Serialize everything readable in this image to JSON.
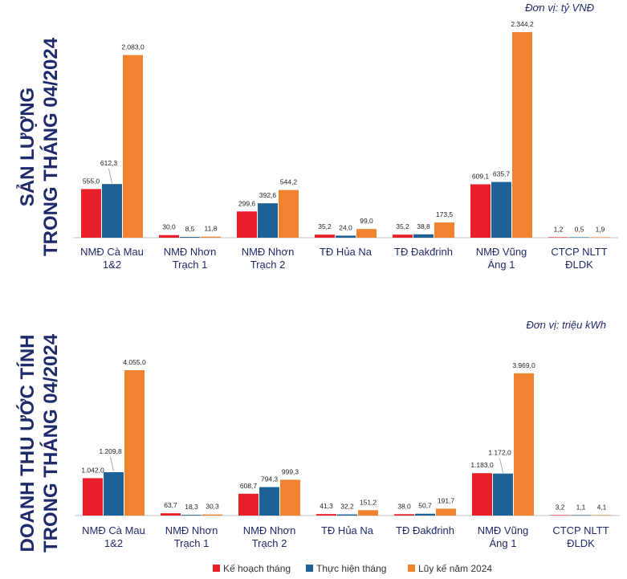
{
  "colors": {
    "ke_hoach": "#e8202a",
    "thuc_hien": "#1f6396",
    "luy_ke": "#f08230",
    "title": "#1f2a6b",
    "axis": "#bfbfbf"
  },
  "legend": {
    "items": [
      "Kế hoạch tháng",
      "Thực hiện tháng",
      "Lũy kế năm 2024"
    ]
  },
  "chart_data": [
    {
      "type": "bar",
      "title_line1": "SẢN LƯỢNG",
      "title_line2": "TRONG THÁNG 04/2024",
      "unit_prefix": "Đơn vị: ",
      "unit_value": "tỷ VNĐ",
      "categories": [
        [
          "NMĐ Cà Mau",
          "1&2"
        ],
        [
          "NMĐ Nhơn",
          "Trạch 1"
        ],
        [
          "NMĐ Nhơn",
          "Trạch 2"
        ],
        [
          "TĐ Hủa Na",
          ""
        ],
        [
          "TĐ Đakđrinh",
          ""
        ],
        [
          "NMĐ Vũng",
          "Áng 1"
        ],
        [
          "CTCP NLTT",
          "ĐLDK"
        ]
      ],
      "series": [
        {
          "name": "Kế hoạch tháng",
          "values": [
            555.0,
            30.0,
            299.6,
            35.2,
            35.2,
            609.1,
            1.2
          ]
        },
        {
          "name": "Thực hiện tháng",
          "values": [
            612.3,
            8.5,
            392.6,
            24.0,
            38.8,
            635.7,
            0.5
          ]
        },
        {
          "name": "Lũy kế năm 2024",
          "values": [
            2083.0,
            11.8,
            544.2,
            99.0,
            173.5,
            2344.2,
            1.9
          ]
        }
      ],
      "labels": [
        [
          "555,0",
          "30,0",
          "299,6",
          "35,2",
          "35,2",
          "609,1",
          "1,2"
        ],
        [
          "612,3",
          "8,5",
          "392,6",
          "24,0",
          "38,8",
          "635,7",
          "0,5"
        ],
        [
          "2.083,0",
          "11,8",
          "544,2",
          "99,0",
          "173,5",
          "2.344,2",
          "1,9"
        ]
      ],
      "ylim": [
        0,
        2344.2
      ]
    },
    {
      "type": "bar",
      "title_line1": "DOANH THU ƯỚC TÍNH",
      "title_line2": "TRONG THÁNG 04/2024",
      "unit_prefix": "Đơn vị: ",
      "unit_value": "triệu kWh",
      "categories": [
        [
          "NMĐ Cà Mau",
          "1&2"
        ],
        [
          "NMĐ Nhơn",
          "Trạch 1"
        ],
        [
          "NMĐ Nhơn",
          "Trạch 2"
        ],
        [
          "TĐ Hủa Na",
          ""
        ],
        [
          "TĐ Đakđrinh",
          ""
        ],
        [
          "NMĐ Vũng",
          "Áng 1"
        ],
        [
          "CTCP NLTT",
          "ĐLDK"
        ]
      ],
      "series": [
        {
          "name": "Kế hoạch tháng",
          "values": [
            1042.0,
            63.7,
            608.7,
            41.3,
            38.0,
            1183.0,
            3.2
          ]
        },
        {
          "name": "Thực hiện tháng",
          "values": [
            1209.8,
            18.3,
            794.3,
            32.2,
            50.7,
            1172.0,
            1.1
          ]
        },
        {
          "name": "Lũy kế năm 2024",
          "values": [
            4055.0,
            30.3,
            999.3,
            151.2,
            191.7,
            3969.0,
            4.1
          ]
        }
      ],
      "labels": [
        [
          "1.042,0",
          "63,7",
          "608,7",
          "41,3",
          "38,0",
          "1.183,0",
          "3,2"
        ],
        [
          "1.209,8",
          "18,3",
          "794,3",
          "32,2",
          "50,7",
          "1.172,0",
          "1,1"
        ],
        [
          "4.055,0",
          "30,3",
          "999,3",
          "151,2",
          "191,7",
          "3.969,0",
          "4,1"
        ]
      ],
      "ylim": [
        0,
        4055.0
      ]
    }
  ]
}
